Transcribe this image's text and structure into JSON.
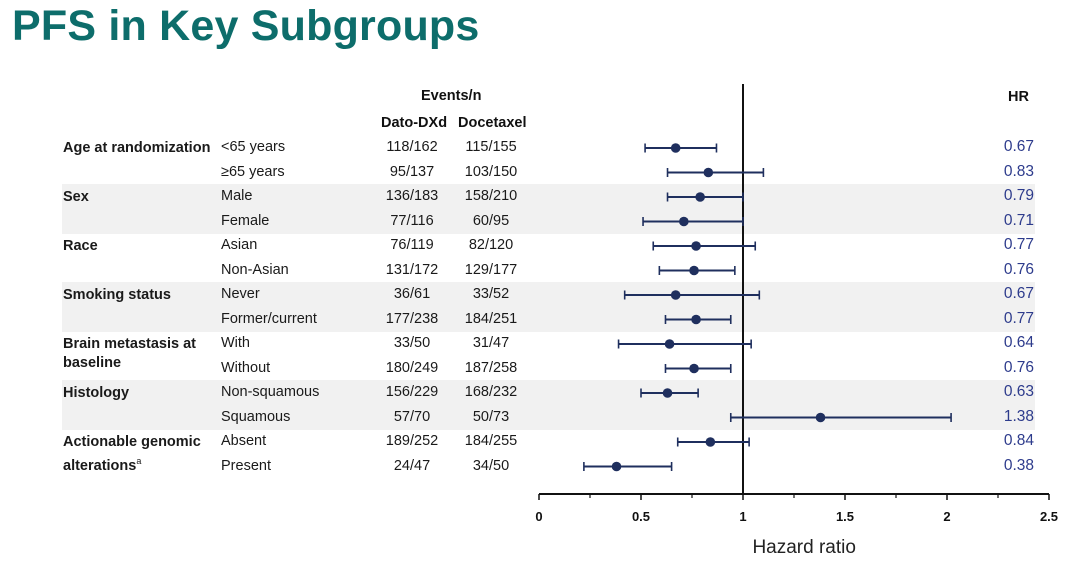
{
  "page": {
    "title": "PFS in Key Subgroups"
  },
  "headers": {
    "events": "Events/n",
    "arm1": "Dato-DXd",
    "arm2": "Docetaxel",
    "hr": "HR"
  },
  "rows": [
    {
      "group": "Age at randomization",
      "sub": "<65 years",
      "e1": "118/162",
      "e2": "115/155",
      "hr": "0.67"
    },
    {
      "group": "",
      "sub": "≥65 years",
      "e1": "95/137",
      "e2": "103/150",
      "hr": "0.83"
    },
    {
      "group": "Sex",
      "sub": "Male",
      "e1": "136/183",
      "e2": "158/210",
      "hr": "0.79"
    },
    {
      "group": "",
      "sub": "Female",
      "e1": "77/116",
      "e2": "60/95",
      "hr": "0.71"
    },
    {
      "group": "Race",
      "sub": "Asian",
      "e1": "76/119",
      "e2": "82/120",
      "hr": "0.77"
    },
    {
      "group": "",
      "sub": "Non-Asian",
      "e1": "131/172",
      "e2": "129/177",
      "hr": "0.76"
    },
    {
      "group": "Smoking status",
      "sub": "Never",
      "e1": "36/61",
      "e2": "33/52",
      "hr": "0.67"
    },
    {
      "group": "",
      "sub": "Former/current",
      "e1": "177/238",
      "e2": "184/251",
      "hr": "0.77"
    },
    {
      "group": "Brain metastasis at baseline",
      "sub": "With",
      "e1": "33/50",
      "e2": "31/47",
      "hr": "0.64"
    },
    {
      "group": "",
      "sub": "Without",
      "e1": "180/249",
      "e2": "187/258",
      "hr": "0.76"
    },
    {
      "group": "Histology",
      "sub": "Non-squamous",
      "e1": "156/229",
      "e2": "168/232",
      "hr": "0.63"
    },
    {
      "group": "",
      "sub": "Squamous",
      "e1": "57/70",
      "e2": "50/73",
      "hr": "1.38"
    },
    {
      "group": "Actionable genomic alterations",
      "group_sup": "a",
      "sub": "Absent",
      "e1": "189/252",
      "e2": "184/255",
      "hr": "0.84"
    },
    {
      "group": "",
      "sub": "Present",
      "e1": "24/47",
      "e2": "34/50",
      "hr": "0.38"
    }
  ],
  "chart_data": {
    "type": "forest",
    "xlabel": "Hazard ratio",
    "xlim": [
      0,
      2.5
    ],
    "xticks": [
      "0",
      "0.5",
      "1",
      "1.5",
      "2",
      "2.5"
    ],
    "reference_line": 1,
    "marker_color": "#1f2f5e",
    "hr_text_color": "#2d3b8c",
    "points": [
      {
        "label": "Age <65 years",
        "hr": 0.67,
        "ci": [
          0.52,
          0.87
        ]
      },
      {
        "label": "Age ≥65 years",
        "hr": 0.83,
        "ci": [
          0.63,
          1.1
        ]
      },
      {
        "label": "Male",
        "hr": 0.79,
        "ci": [
          0.63,
          1.0
        ]
      },
      {
        "label": "Female",
        "hr": 0.71,
        "ci": [
          0.51,
          1.0
        ]
      },
      {
        "label": "Asian",
        "hr": 0.77,
        "ci": [
          0.56,
          1.06
        ]
      },
      {
        "label": "Non-Asian",
        "hr": 0.76,
        "ci": [
          0.59,
          0.96
        ]
      },
      {
        "label": "Never",
        "hr": 0.67,
        "ci": [
          0.42,
          1.08
        ]
      },
      {
        "label": "Former/current",
        "hr": 0.77,
        "ci": [
          0.62,
          0.94
        ]
      },
      {
        "label": "With brain metastasis",
        "hr": 0.64,
        "ci": [
          0.39,
          1.04
        ]
      },
      {
        "label": "Without brain metastasis",
        "hr": 0.76,
        "ci": [
          0.62,
          0.94
        ]
      },
      {
        "label": "Non-squamous",
        "hr": 0.63,
        "ci": [
          0.5,
          0.78
        ]
      },
      {
        "label": "Squamous",
        "hr": 1.38,
        "ci": [
          0.94,
          2.02
        ]
      },
      {
        "label": "AGA absent",
        "hr": 0.84,
        "ci": [
          0.68,
          1.03
        ]
      },
      {
        "label": "AGA present",
        "hr": 0.38,
        "ci": [
          0.22,
          0.65
        ]
      }
    ]
  }
}
